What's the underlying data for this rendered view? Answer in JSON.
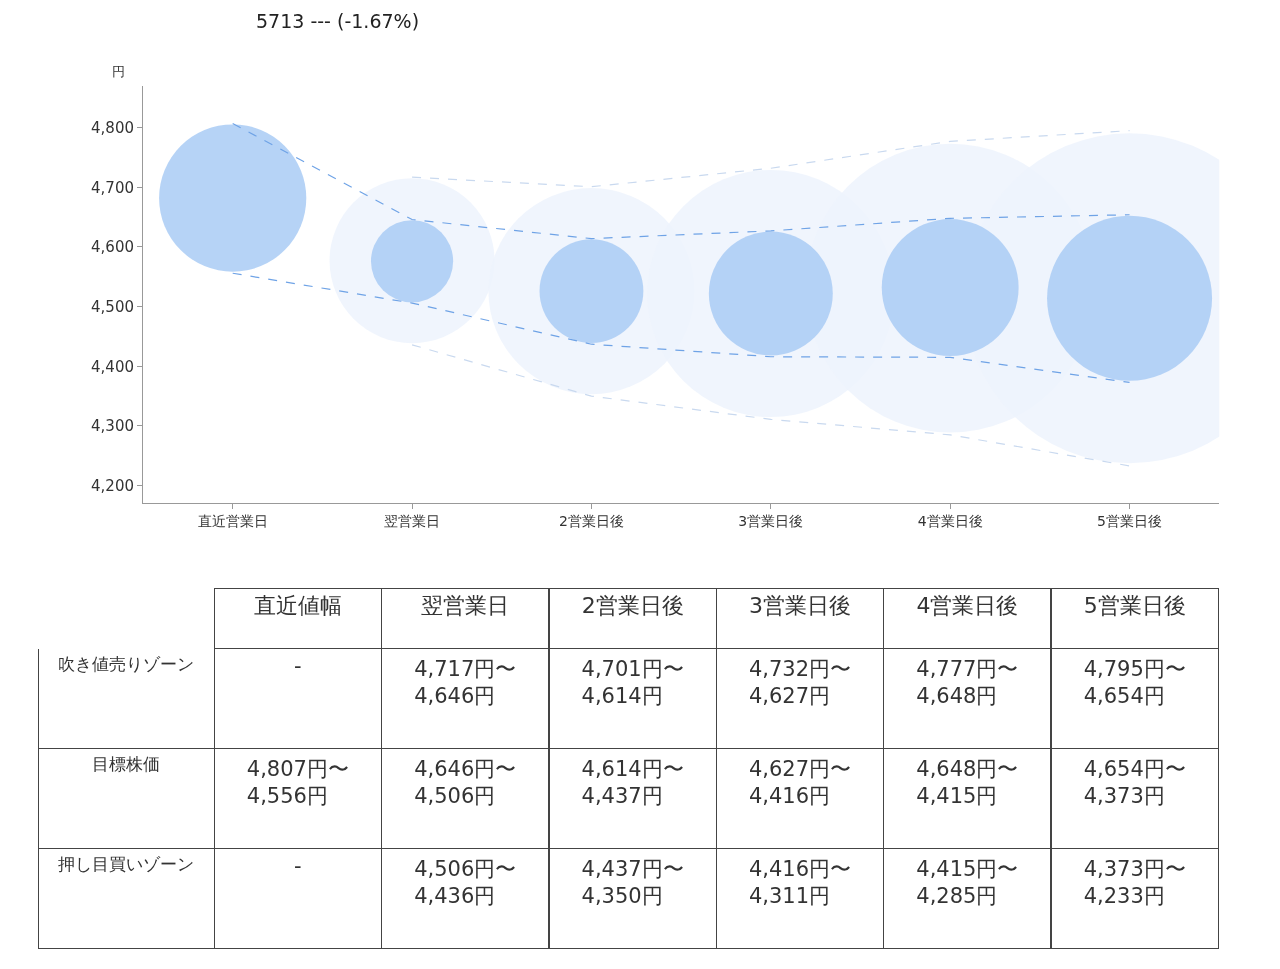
{
  "chart_data": {
    "type": "line",
    "title": "5713 --- (-1.67%)",
    "ylabel": "円",
    "categories": [
      "直近営業日",
      "翌営業日",
      "2営業日後",
      "3営業日後",
      "4営業日後",
      "5営業日後"
    ],
    "series": [
      {
        "color": "#c9d9ef",
        "values": [
          null,
          4717,
          4701,
          4732,
          4777,
          4795
        ]
      },
      {
        "color": "#6fa3e6",
        "values": [
          4807,
          4646,
          4614,
          4627,
          4648,
          4654
        ]
      },
      {
        "color": "#6fa3e6",
        "values": [
          4556,
          4506,
          4437,
          4416,
          4415,
          4373
        ]
      },
      {
        "color": "#c9d9ef",
        "values": [
          null,
          4436,
          4350,
          4311,
          4285,
          4233
        ]
      },
      {
        "type": "bubble",
        "color": "#edf3fd",
        "values": [
          null,
          4577,
          4526,
          4522,
          4531,
          4514
        ],
        "sizes": [
          null,
          0.25,
          0.39,
          0.561,
          0.766,
          1
        ]
      },
      {
        "type": "bubble",
        "color": "#a9cbf5",
        "values": [
          4682,
          4576,
          4526,
          4522,
          4532,
          4514
        ],
        "sizes": [
          0.199,
          0.062,
          0.099,
          0.141,
          0.172,
          0.25
        ]
      }
    ],
    "ylim": [
      4170,
      4870
    ],
    "yticks": [
      {
        "value": 4200,
        "label": "4,200"
      },
      {
        "value": 4300,
        "label": "4,300"
      },
      {
        "value": 4400,
        "label": "4,400"
      },
      {
        "value": 4500,
        "label": "4,500"
      },
      {
        "value": 4600,
        "label": "4,600"
      },
      {
        "value": 4700,
        "label": "4,700"
      },
      {
        "value": 4800,
        "label": "4,800"
      }
    ],
    "line_style": "dashed",
    "annotations": [
      "直近値幅",
      "吹き値売りゾーン",
      "目標株価",
      "押し目買いゾーン",
      "-",
      "4,717円〜\n4,646円",
      "4,701円〜\n4,614円",
      "4,732円〜\n4,627円",
      "4,777円〜\n4,648円",
      "4,795円〜\n4,654円",
      "4,807円〜\n4,556円",
      "4,646円〜\n4,506円",
      "4,614円〜\n4,437円",
      "4,627円〜\n4,416円",
      "4,648円〜\n4,415円",
      "4,654円〜\n4,373円",
      "-",
      "4,506円〜\n4,436円",
      "4,437円〜\n4,350円",
      "4,416円〜\n4,311円",
      "4,415円〜\n4,285円",
      "4,373円〜\n4,233円"
    ]
  }
}
